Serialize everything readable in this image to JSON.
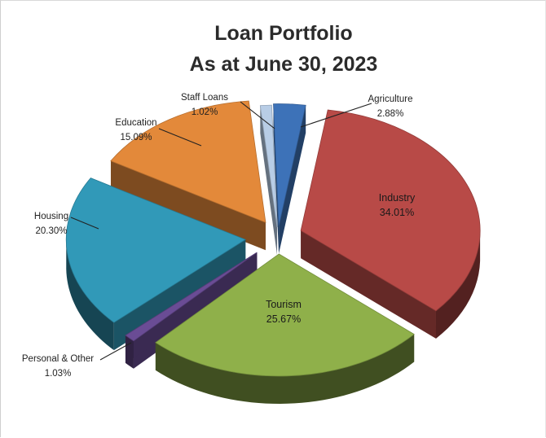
{
  "chart_data": {
    "type": "pie",
    "title_line1": "Loan Portfolio",
    "title_line2": "As at June 30, 2023",
    "legend": "none",
    "slices": [
      {
        "name": "Agriculture",
        "value_label": "2.88%",
        "value": 2.88,
        "color": "#3d72b8"
      },
      {
        "name": "Industry",
        "value_label": "34.01%",
        "value": 34.01,
        "color": "#b84a47"
      },
      {
        "name": "Tourism",
        "value_label": "25.67%",
        "value": 25.67,
        "color": "#8fb04a"
      },
      {
        "name": "Personal & Other",
        "value_label": "1.03%",
        "value": 1.03,
        "color": "#6a4c95"
      },
      {
        "name": "Housing",
        "value_label": "20.30%",
        "value": 20.3,
        "color": "#3199b8"
      },
      {
        "name": "Education",
        "value_label": "15.09%",
        "value": 15.09,
        "color": "#e3893a"
      },
      {
        "name": "Staff Loans",
        "value_label": "1.02%",
        "value": 1.02,
        "color": "#b8cde6"
      }
    ]
  }
}
